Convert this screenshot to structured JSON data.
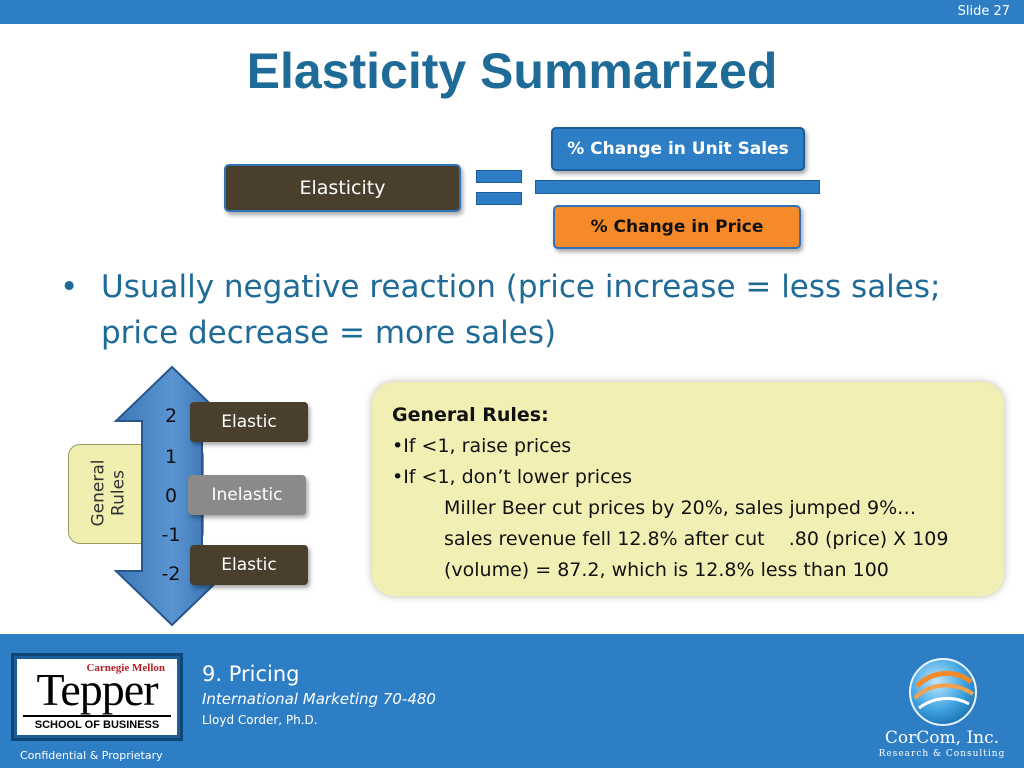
{
  "slide": {
    "number_label": "Slide 27"
  },
  "title": "Elasticity Summarized",
  "formula": {
    "lhs": "Elasticity",
    "numerator": "% Change in Unit Sales",
    "denominator": "% Change in Price"
  },
  "bullet": {
    "text": "Usually negative reaction (price increase = less sales; price decrease = more sales)"
  },
  "scale": {
    "side_label": "General\nRules",
    "numbers": [
      "2",
      "1",
      "0",
      "-1",
      "-2"
    ],
    "tags": [
      "Elastic",
      "Inelastic",
      "Elastic"
    ]
  },
  "rules_panel": {
    "heading": "General Rules:",
    "rule_1": "•If <1, raise prices",
    "rule_2": "•If <1, don’t lower prices",
    "detail_1": "Miller Beer cut prices by 20%, sales jumped 9%…",
    "detail_2": "sales revenue fell 12.8% after cut    .80 (price) X 109",
    "detail_3": "(volume) = 87.2, which is 12.8% less than 100"
  },
  "footer": {
    "chapter": "9. Pricing",
    "course": "International Marketing 70-480",
    "author": "Lloyd Corder, Ph.D.",
    "confidential": "Confidential & Proprietary",
    "logo_cmu": "Carnegie Mellon",
    "logo_tepper": "Tepper",
    "logo_school": "SCHOOL OF BUSINESS",
    "corcom_name": "CorCom, Inc.",
    "corcom_tagline": "Research & Consulting"
  },
  "colors": {
    "title": "#1f6b98",
    "accent_blue": "#2e7ec6",
    "dark_box": "#4a3f2c",
    "orange_box": "#f58a2a",
    "panel": "#f1efb4"
  },
  "icons": {
    "arrow": "double-arrow-icon",
    "corcom": "corcom-globe-icon"
  }
}
